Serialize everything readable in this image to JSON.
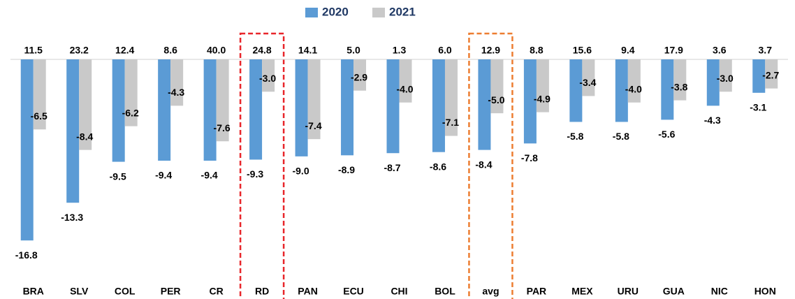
{
  "chart_data": {
    "type": "bar",
    "categories": [
      "BRA",
      "SLV",
      "COL",
      "PER",
      "CR",
      "RD",
      "PAN",
      "ECU",
      "CHI",
      "BOL",
      "avg",
      "PAR",
      "MEX",
      "URU",
      "GUA",
      "NIC",
      "HON"
    ],
    "annotations": [
      "11.5",
      "23.2",
      "12.4",
      "8.6",
      "40.0",
      "24.8",
      "14.1",
      "5.0",
      "1.3",
      "6.0",
      "12.9",
      "8.8",
      "15.6",
      "9.4",
      "17.9",
      "3.6",
      "3.7"
    ],
    "series": [
      {
        "name": "2020",
        "color": "#5b9bd5",
        "values": [
          -16.8,
          -13.3,
          -9.5,
          -9.4,
          -9.4,
          -9.3,
          -9.0,
          -8.9,
          -8.7,
          -8.6,
          -8.4,
          -7.8,
          -5.8,
          -5.8,
          -5.6,
          -4.3,
          -3.1
        ],
        "value_labels": [
          "-16.8",
          "-13.3",
          "-9.5",
          "-9.4",
          "-9.4",
          "-9.3",
          "-9.0",
          "-8.9",
          "-8.7",
          "-8.6",
          "-8.4",
          "-7.8",
          "-5.8",
          "-5.8",
          "-5.6",
          "-4.3",
          "-3.1"
        ]
      },
      {
        "name": "2021",
        "color": "#c9c9c9",
        "values": [
          -6.5,
          -8.4,
          -6.2,
          -4.3,
          -7.6,
          -3.0,
          -7.4,
          -2.9,
          -4.0,
          -7.1,
          -5.0,
          -4.9,
          -3.4,
          -4.0,
          -3.8,
          -3.0,
          -2.7
        ],
        "value_labels": [
          "-6.5",
          "-8.4",
          "-6.2",
          "-4.3",
          "-7.6",
          "-3.0",
          "-7.4",
          "-2.9",
          "-4.0",
          "-7.1",
          "-5.0",
          "-4.9",
          "-3.4",
          "-4.0",
          "-3.8",
          "-3.0",
          "-2.7"
        ]
      }
    ],
    "ylim": [
      -17.5,
      0
    ],
    "highlights": [
      {
        "index": 5,
        "color": "#e8262b"
      },
      {
        "index": 10,
        "color": "#ed7d31"
      }
    ]
  }
}
